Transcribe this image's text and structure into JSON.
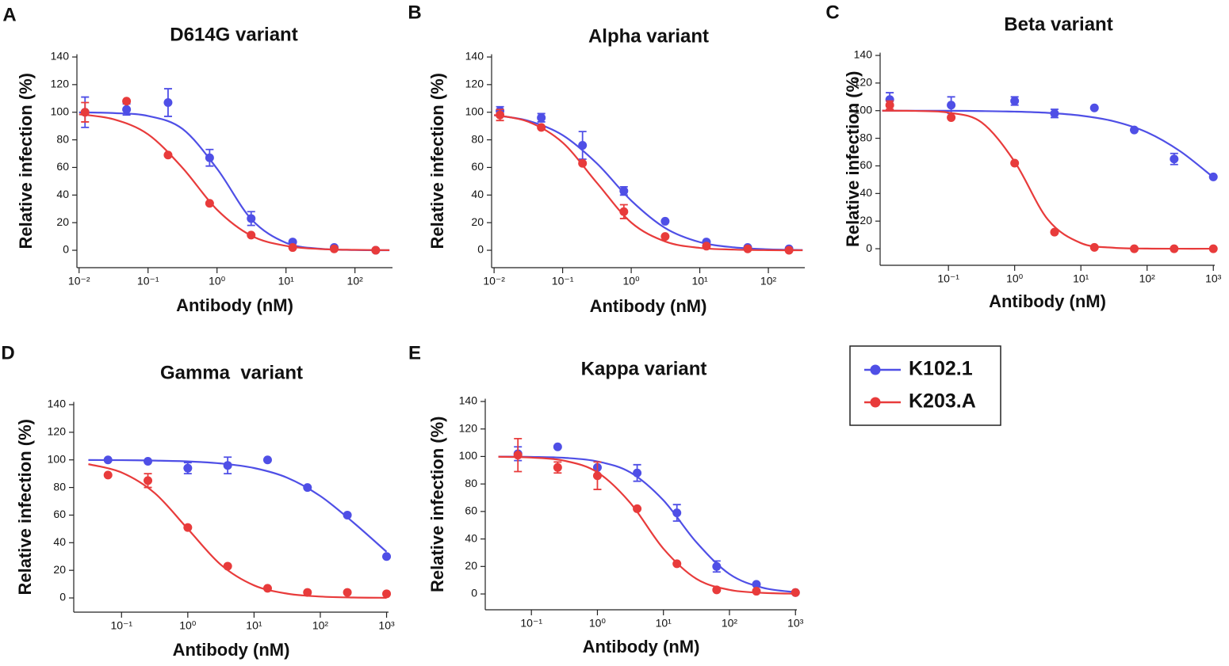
{
  "chart_data": [
    {
      "type": "line",
      "panel": "A",
      "title": "D614G variant",
      "x_label": "Antibody (nM)",
      "y_label": "Relative infection (%)",
      "xscale": "log",
      "xlim": [
        0.0093,
        350
      ],
      "ylim": [
        -12.6,
        142
      ],
      "xticks": [
        {
          "value": 0.01,
          "label": "10⁻²"
        },
        {
          "value": 0.1,
          "label": "10⁻¹"
        },
        {
          "value": 1,
          "label": "10⁰"
        },
        {
          "value": 10,
          "label": "10¹"
        },
        {
          "value": 100,
          "label": "10²"
        }
      ],
      "yticks": [
        0,
        20,
        40,
        60,
        80,
        100,
        120,
        140
      ],
      "x": [
        0.0122,
        0.0488,
        0.195,
        0.781,
        3.125,
        12.5,
        50,
        200
      ],
      "curve_x": [
        0.01,
        0.0316,
        0.1,
        0.316,
        1,
        3.16,
        10,
        31.6,
        100,
        316
      ],
      "series": [
        {
          "name": "K102.1",
          "color": "#4f4fe6",
          "values": [
            100,
            102,
            107,
            67,
            23,
            6,
            2,
            0
          ],
          "errors": [
            11,
            4,
            10,
            6,
            5,
            0,
            0,
            0
          ],
          "curve": [
            99.9,
            99.4,
            97.3,
            87.9,
            59.1,
            22.4,
            5.4,
            1.1,
            0.2,
            0.0
          ]
        },
        {
          "name": "K203.A",
          "color": "#e83b3b",
          "values": [
            100,
            108,
            69,
            34,
            11,
            2,
            1,
            0
          ],
          "errors": [
            7,
            0,
            0,
            0,
            0,
            0,
            0,
            0
          ],
          "curve": [
            98.5,
            94.9,
            84.0,
            59.7,
            29.4,
            10.5,
            3.2,
            0.9,
            0.3,
            0.1
          ]
        }
      ]
    },
    {
      "type": "line",
      "panel": "B",
      "title": "Alpha variant",
      "x_label": "Antibody (nM)",
      "y_label": "Relative infection (%)",
      "xscale": "log",
      "xlim": [
        0.0092,
        340
      ],
      "ylim": [
        -12.6,
        142
      ],
      "xticks": [
        {
          "value": 0.01,
          "label": "10⁻²"
        },
        {
          "value": 0.1,
          "label": "10⁻¹"
        },
        {
          "value": 1,
          "label": "10⁰"
        },
        {
          "value": 10,
          "label": "10¹"
        },
        {
          "value": 100,
          "label": "10²"
        }
      ],
      "yticks": [
        0,
        20,
        40,
        60,
        80,
        100,
        120,
        140
      ],
      "x": [
        0.0122,
        0.0488,
        0.195,
        0.781,
        3.125,
        12.5,
        50,
        200
      ],
      "curve_x": [
        0.01,
        0.0316,
        0.1,
        0.316,
        1,
        3.16,
        10,
        31.6,
        100,
        316
      ],
      "series": [
        {
          "name": "K102.1",
          "color": "#4f4fe6",
          "values": [
            101,
            96,
            76,
            43,
            21,
            6,
            2,
            1
          ],
          "errors": [
            3,
            3,
            10,
            3,
            0,
            0,
            0,
            0
          ],
          "curve": [
            97.8,
            93.8,
            83.4,
            62.9,
            36.0,
            16.0,
            5.9,
            2.1,
            0.7,
            0.2
          ]
        },
        {
          "name": "K203.A",
          "color": "#e83b3b",
          "values": [
            98,
            89,
            63,
            28,
            10,
            3,
            1,
            0
          ],
          "errors": [
            4,
            0,
            0,
            5,
            0,
            0,
            0,
            0
          ],
          "curve": [
            98.0,
            93.1,
            78.0,
            48.8,
            20.1,
            6.3,
            1.7,
            0.5,
            0.1,
            0.0
          ]
        }
      ]
    },
    {
      "type": "line",
      "panel": "C",
      "title": "Beta variant",
      "x_label": "Antibody (nM)",
      "y_label": "Relative infection (%)",
      "xscale": "log",
      "xlim": [
        0.0093,
        1050
      ],
      "ylim": [
        -12,
        142
      ],
      "xticks": [
        {
          "value": 0.1,
          "label": "10⁻¹"
        },
        {
          "value": 1,
          "label": "10⁰"
        },
        {
          "value": 10,
          "label": "10¹"
        },
        {
          "value": 100,
          "label": "10²"
        },
        {
          "value": 1000,
          "label": "10³"
        }
      ],
      "yticks": [
        0,
        20,
        40,
        60,
        80,
        100,
        120,
        140
      ],
      "x": [
        0.013,
        0.11,
        1,
        4,
        16,
        64,
        256,
        1000
      ],
      "curve_x": [
        0.01,
        0.0316,
        0.1,
        0.316,
        1,
        3.16,
        10,
        31.6,
        100,
        316,
        1000
      ],
      "series": [
        {
          "name": "K102.1",
          "color": "#4f4fe6",
          "values": [
            108,
            104,
            107,
            98,
            102,
            86,
            65,
            52
          ],
          "errors": [
            5,
            6,
            3,
            3,
            0,
            0,
            4,
            0
          ],
          "curve": [
            100.0,
            99.9,
            99.9,
            99.7,
            99.3,
            98.4,
            96.4,
            92.3,
            84.3,
            70.6,
            51.7
          ]
        },
        {
          "name": "K203.A",
          "color": "#e83b3b",
          "values": [
            104,
            95,
            62,
            12,
            1,
            0,
            0,
            0
          ],
          "errors": [
            3,
            0,
            0,
            0,
            0,
            0,
            0,
            0
          ],
          "curve": [
            100.0,
            99.8,
            98.6,
            91.5,
            63.0,
            21.2,
            4.1,
            0.7,
            0.1,
            0.0,
            0.0
          ]
        }
      ]
    },
    {
      "type": "line",
      "panel": "D",
      "title": "Gamma  variant",
      "x_label": "Antibody (nM)",
      "y_label": "Relative infection (%)",
      "xscale": "log",
      "xlim": [
        0.019,
        1070
      ],
      "ylim": [
        -10.3,
        142
      ],
      "xticks": [
        {
          "value": 0.1,
          "label": "10⁻¹"
        },
        {
          "value": 1,
          "label": "10⁰"
        },
        {
          "value": 10,
          "label": "10¹"
        },
        {
          "value": 100,
          "label": "10²"
        },
        {
          "value": 1000,
          "label": "10³"
        }
      ],
      "yticks": [
        0,
        20,
        40,
        60,
        80,
        100,
        120,
        140
      ],
      "x": [
        0.0625,
        0.25,
        1,
        4,
        16,
        64,
        256,
        1000
      ],
      "curve_x": [
        0.0316,
        0.1,
        0.316,
        1,
        3.16,
        10,
        31.6,
        100,
        316,
        1000
      ],
      "series": [
        {
          "name": "K102.1",
          "color": "#4f4fe6",
          "values": [
            100,
            99,
            94,
            96,
            100,
            80,
            60,
            30
          ],
          "errors": [
            0,
            0,
            4,
            6,
            0,
            0,
            0,
            0
          ],
          "curve": [
            99.9,
            99.8,
            99.5,
            98.9,
            97.4,
            94.1,
            87.1,
            73.8,
            54.6,
            33.4
          ]
        },
        {
          "name": "K203.A",
          "color": "#e83b3b",
          "values": [
            89,
            85,
            51,
            23,
            7,
            4,
            4,
            3
          ],
          "errors": [
            0,
            5,
            0,
            0,
            0,
            0,
            0,
            0
          ],
          "curve": [
            96.9,
            90.9,
            76.0,
            50.0,
            24.0,
            9.1,
            3.1,
            1.0,
            0.3,
            0.1
          ]
        }
      ]
    },
    {
      "type": "line",
      "panel": "E",
      "title": "Kappa variant",
      "x_label": "Antibody (nM)",
      "y_label": "Relative infection (%)",
      "xscale": "log",
      "xlim": [
        0.02,
        1050
      ],
      "ylim": [
        -11.5,
        142
      ],
      "xticks": [
        {
          "value": 0.1,
          "label": "10⁻¹"
        },
        {
          "value": 1,
          "label": "10⁰"
        },
        {
          "value": 10,
          "label": "10¹"
        },
        {
          "value": 100,
          "label": "10²"
        },
        {
          "value": 1000,
          "label": "10³"
        }
      ],
      "yticks": [
        0,
        20,
        40,
        60,
        80,
        100,
        120,
        140
      ],
      "x": [
        0.0625,
        0.25,
        1,
        4,
        16,
        64,
        256,
        1000
      ],
      "curve_x": [
        0.0316,
        0.1,
        0.316,
        1,
        3.16,
        10,
        31.6,
        100,
        316,
        1000
      ],
      "series": [
        {
          "name": "K102.1",
          "color": "#4f4fe6",
          "values": [
            102,
            107,
            92,
            88,
            59,
            20,
            7,
            1
          ],
          "errors": [
            5,
            0,
            0,
            6,
            6,
            4,
            0,
            0
          ],
          "curve": [
            99.9,
            99.7,
            99.0,
            96.4,
            88.4,
            68.1,
            37.6,
            14.5,
            4.6,
            1.3
          ]
        },
        {
          "name": "K203.A",
          "color": "#e83b3b",
          "values": [
            101,
            92,
            86,
            62,
            22,
            3,
            2,
            1
          ],
          "errors": [
            12,
            4,
            10,
            0,
            0,
            0,
            0,
            0
          ],
          "curve": [
            99.8,
            99.2,
            96.9,
            88.5,
            66.1,
            32.9,
            11.0,
            3.0,
            0.8,
            0.2
          ]
        }
      ]
    }
  ]
}
